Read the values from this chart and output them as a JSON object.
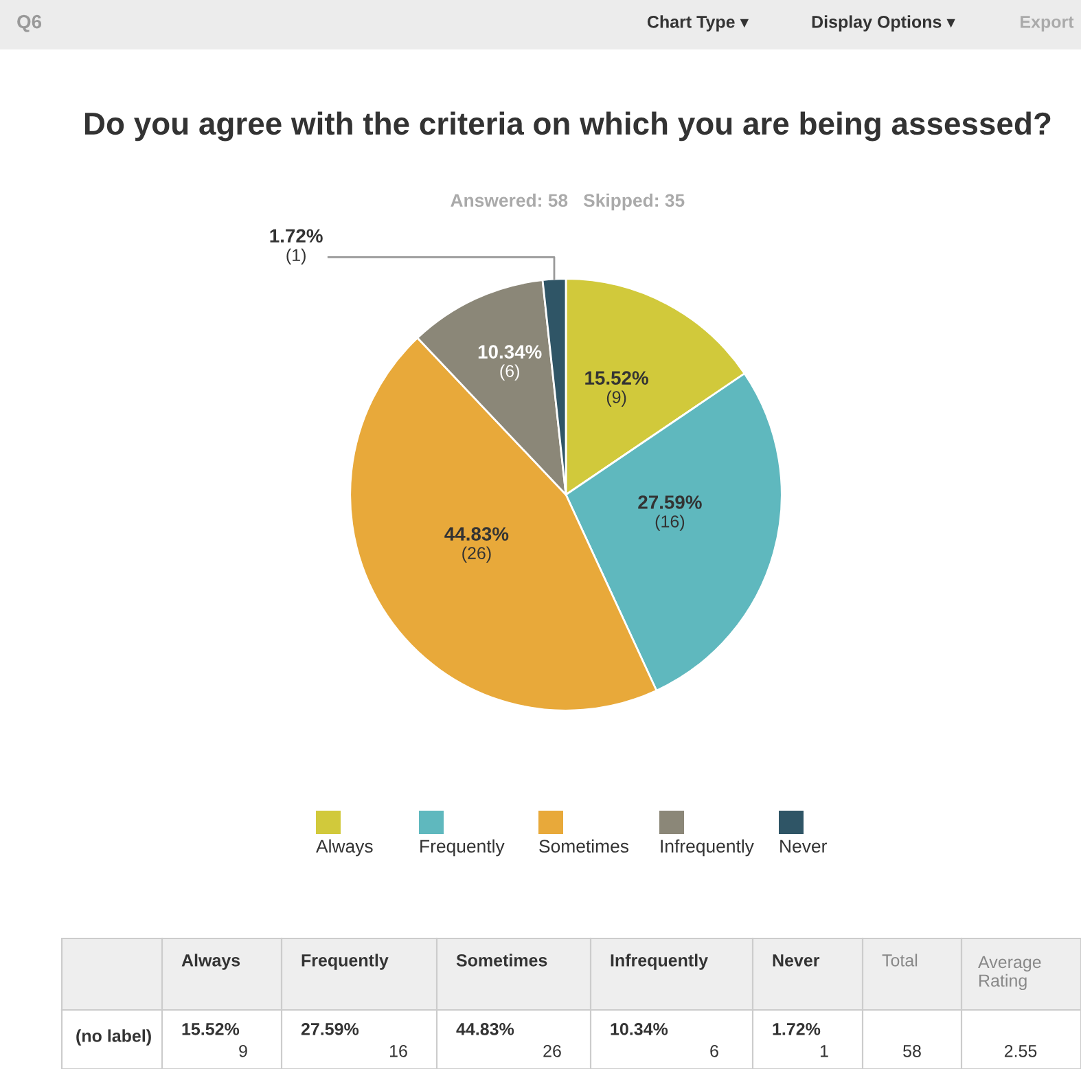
{
  "chart_data": {
    "type": "pie",
    "title": "Do you agree with the criteria on which you are being assessed?",
    "subtitle": "Answered: 58   Skipped: 35",
    "categories": [
      "Always",
      "Frequently",
      "Sometimes",
      "Infrequently",
      "Never"
    ],
    "values": [
      9,
      16,
      26,
      6,
      1
    ],
    "value_labels": [
      "15.52%\n(9)",
      "27.59%\n(16)",
      "44.83%\n(26)",
      "10.34%\n(6)",
      "1.72%\n(1)"
    ],
    "colors": [
      "#d1c93b",
      "#5fb8be",
      "#e8a93a",
      "#8b8778",
      "#2f5566"
    ],
    "legend": "bottom",
    "annotations": [
      "Q6",
      "Chart Type ▾",
      "Display Options ▾",
      "Export",
      "(no label)",
      "Total",
      "Average Rating",
      "58",
      "2.55",
      "15.52%",
      "9",
      "27.59%",
      "16",
      "44.83%",
      "26",
      "10.34%",
      "6",
      "1.72%",
      "1"
    ]
  }
}
